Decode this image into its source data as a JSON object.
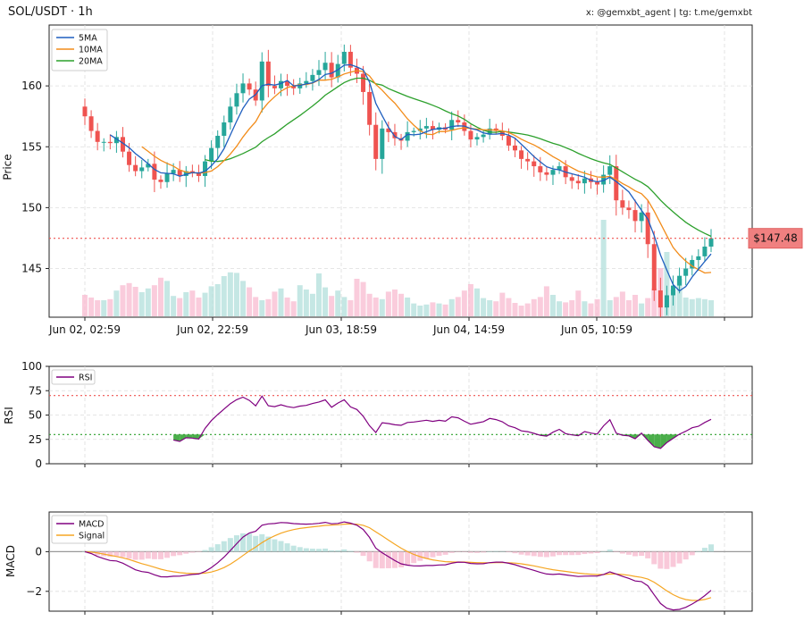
{
  "header": {
    "title": "SOL/USDT · 1h",
    "credit": "x: @gemxbt_agent | tg: t.me/gemxbt"
  },
  "colors": {
    "up": "#26a69a",
    "down": "#ef5350",
    "ma5": "#1f5fbf",
    "ma10": "#f28c1a",
    "ma20": "#2ca02c",
    "rsi": "#800080",
    "macd": "#800080",
    "signal": "#f5a623"
  },
  "chart_data": [
    {
      "type": "candlestick",
      "ylabel": "Price",
      "ylim": [
        141,
        165
      ],
      "yticks": [
        "145",
        "150",
        "155",
        "160"
      ],
      "xticks": [
        "Jun 02, 02:59",
        "Jun 02, 22:59",
        "Jun 03, 18:59",
        "Jun 04, 14:59",
        "Jun 05, 10:59"
      ],
      "legend": {
        "position": "top-left",
        "entries": [
          "5MA",
          "10MA",
          "20MA"
        ]
      },
      "current_price_label": "$147.48",
      "current_price": 147.48,
      "close": [
        157.5,
        156.3,
        155.4,
        155.4,
        155.3,
        155.8,
        154.6,
        153.5,
        153.0,
        153.3,
        153.6,
        152.3,
        152.1,
        152.8,
        153.1,
        152.6,
        153.0,
        152.9,
        152.6,
        153.8,
        154.9,
        155.9,
        157.0,
        158.3,
        159.4,
        160.2,
        159.7,
        158.8,
        162.0,
        160.0,
        159.8,
        160.4,
        160.0,
        159.8,
        160.2,
        160.4,
        160.9,
        161.3,
        161.9,
        160.7,
        161.8,
        162.8,
        161.5,
        161.0,
        159.5,
        156.8,
        154.0,
        156.5,
        156.2,
        155.7,
        155.5,
        156.2,
        156.3,
        156.5,
        156.7,
        156.4,
        156.6,
        156.4,
        157.2,
        157.0,
        156.3,
        155.6,
        155.8,
        156.0,
        156.5,
        156.3,
        155.9,
        155.1,
        154.7,
        154.0,
        153.8,
        153.4,
        152.9,
        152.7,
        153.1,
        153.4,
        152.5,
        152.2,
        152.0,
        152.4,
        152.1,
        151.9,
        152.7,
        153.4,
        150.6,
        150.0,
        149.8,
        148.9,
        149.6,
        147.0,
        143.2,
        141.8,
        142.8,
        143.6,
        144.4,
        145.0,
        145.7,
        146.0,
        146.8,
        147.48
      ],
      "volume": [
        0.4,
        0.35,
        0.3,
        0.3,
        0.32,
        0.48,
        0.58,
        0.62,
        0.55,
        0.45,
        0.52,
        0.58,
        0.72,
        0.66,
        0.38,
        0.34,
        0.45,
        0.48,
        0.35,
        0.44,
        0.56,
        0.6,
        0.75,
        0.82,
        0.81,
        0.66,
        0.54,
        0.36,
        0.3,
        0.32,
        0.46,
        0.52,
        0.35,
        0.28,
        0.58,
        0.5,
        0.42,
        0.8,
        0.54,
        0.38,
        0.48,
        0.36,
        0.3,
        0.7,
        0.64,
        0.42,
        0.35,
        0.32,
        0.46,
        0.5,
        0.42,
        0.35,
        0.24,
        0.2,
        0.22,
        0.26,
        0.24,
        0.22,
        0.32,
        0.36,
        0.48,
        0.6,
        0.52,
        0.34,
        0.3,
        0.28,
        0.44,
        0.34,
        0.25,
        0.2,
        0.24,
        0.32,
        0.36,
        0.56,
        0.4,
        0.28,
        0.26,
        0.3,
        0.48,
        0.28,
        0.24,
        0.32,
        1.8,
        0.3,
        0.36,
        0.46,
        0.3,
        0.4,
        0.24,
        0.34,
        0.52,
        0.9,
        1.2,
        0.5,
        0.7,
        0.35,
        0.32,
        0.34,
        0.32,
        0.3
      ]
    },
    {
      "type": "line",
      "ylabel": "RSI",
      "ylim": [
        0,
        100
      ],
      "yticks": [
        "0",
        "25",
        "50",
        "75",
        "100"
      ],
      "levels": [
        70,
        30
      ],
      "legend": {
        "position": "top-left",
        "entries": [
          "RSI"
        ]
      }
    },
    {
      "type": "line",
      "ylabel": "MACD",
      "ylim": [
        -3.0,
        2.0
      ],
      "yticks": [
        "−2",
        "0"
      ],
      "legend": {
        "position": "top-left",
        "entries": [
          "MACD",
          "Signal"
        ]
      }
    }
  ]
}
